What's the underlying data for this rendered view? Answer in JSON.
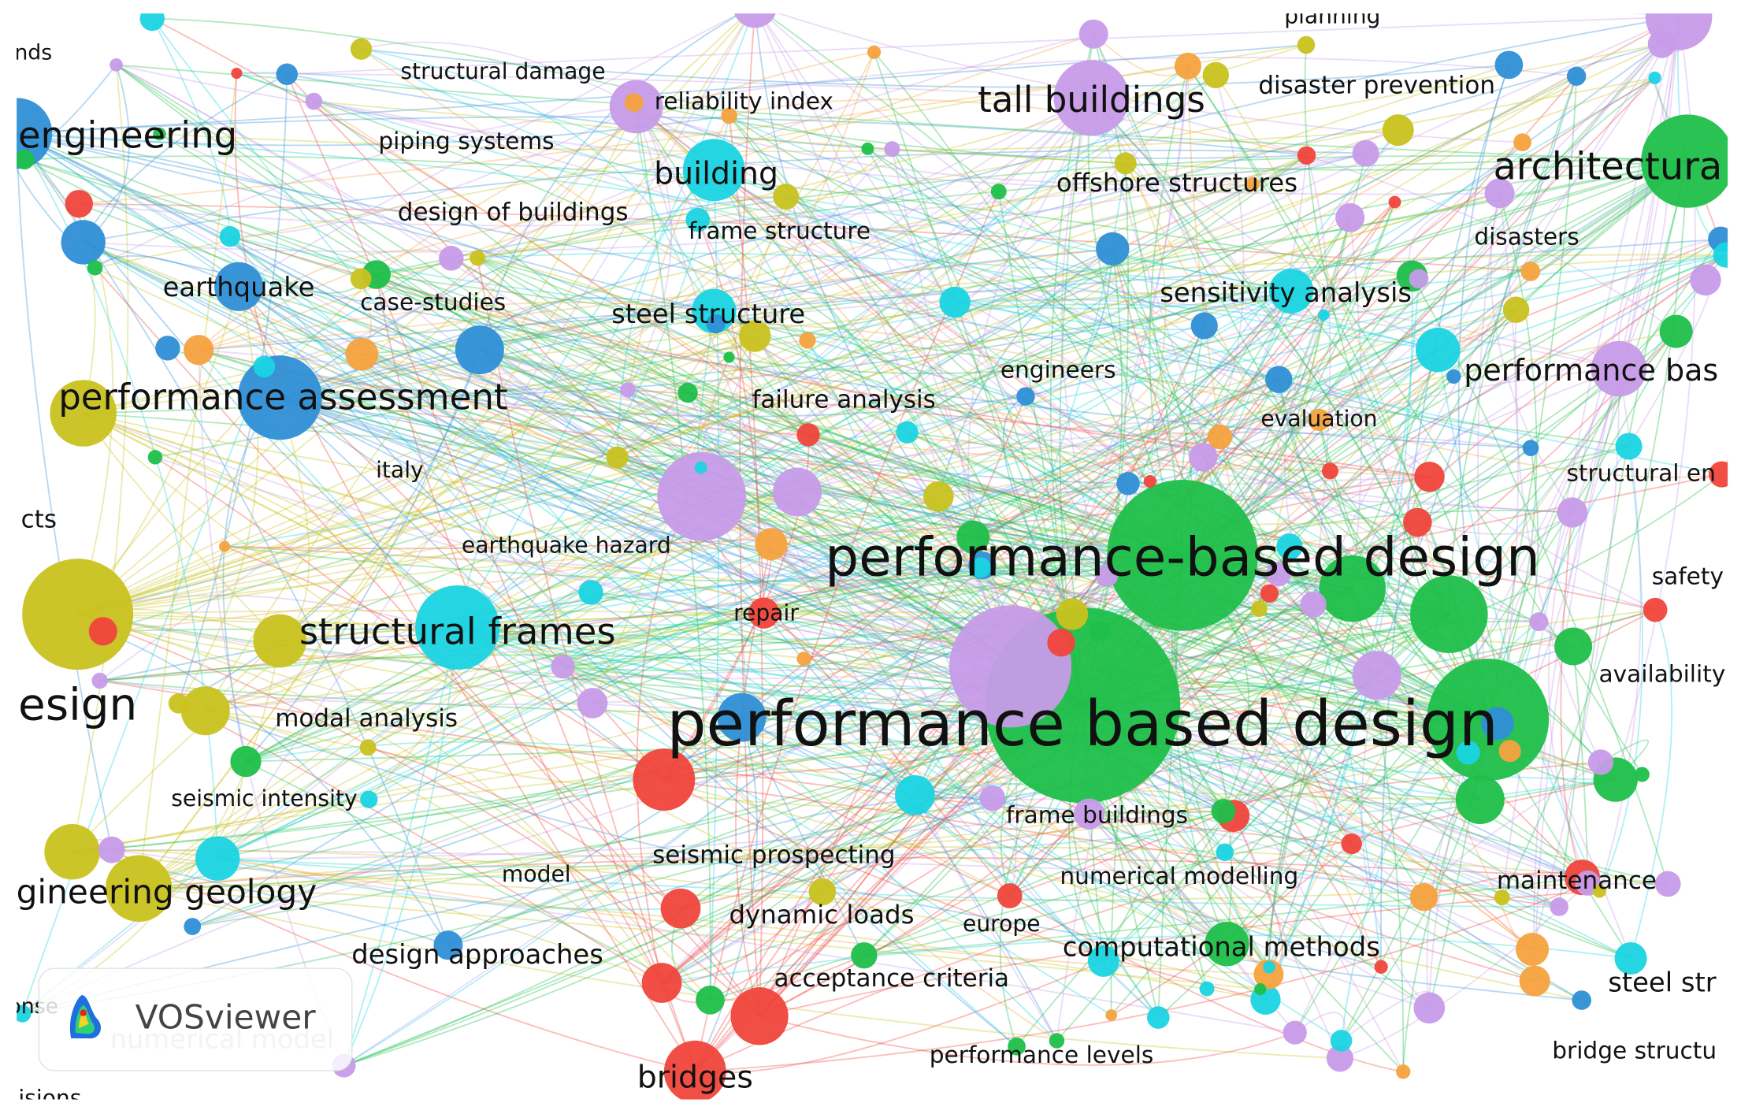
{
  "nodes": [
    {
      "label": "nds"
    },
    {
      "label": "structural damage"
    },
    {
      "label": "reliability index"
    },
    {
      "label": "tall buildings"
    },
    {
      "label": "disaster prevention"
    },
    {
      "label": "engineering"
    },
    {
      "label": "piping systems"
    },
    {
      "label": "building"
    },
    {
      "label": "architectura"
    },
    {
      "label": "offshore structures"
    },
    {
      "label": "design of buildings"
    },
    {
      "label": "frame structure"
    },
    {
      "label": "disasters"
    },
    {
      "label": "earthquake"
    },
    {
      "label": "case-studies"
    },
    {
      "label": "sensitivity analysis"
    },
    {
      "label": "steel structure"
    },
    {
      "label": "engineers"
    },
    {
      "label": "performance bas"
    },
    {
      "label": "performance assessment"
    },
    {
      "label": "failure analysis"
    },
    {
      "label": "evaluation"
    },
    {
      "label": "italy"
    },
    {
      "label": "structural en"
    },
    {
      "label": "cts"
    },
    {
      "label": "earthquake hazard"
    },
    {
      "label": "performance-based design"
    },
    {
      "label": "safety"
    },
    {
      "label": "repair"
    },
    {
      "label": "structural frames"
    },
    {
      "label": "esign"
    },
    {
      "label": "availability"
    },
    {
      "label": "modal analysis"
    },
    {
      "label": "performance based design"
    },
    {
      "label": "seismic intensity"
    },
    {
      "label": "frame buildings"
    },
    {
      "label": "seismic prospecting"
    },
    {
      "label": "model"
    },
    {
      "label": "numerical modelling"
    },
    {
      "label": "maintenance"
    },
    {
      "label": "gineering geology"
    },
    {
      "label": "dynamic loads"
    },
    {
      "label": "europe"
    },
    {
      "label": "computational methods"
    },
    {
      "label": "design approaches"
    },
    {
      "label": "acceptance criteria"
    },
    {
      "label": "steel str"
    },
    {
      "label": "bridge structu"
    },
    {
      "label": "performance levels"
    },
    {
      "label": "bridges"
    },
    {
      "label": "numerical model"
    },
    {
      "label": "isions"
    },
    {
      "label": "planning"
    },
    {
      "label": "onse"
    }
  ],
  "watermark": "VOSviewer"
}
